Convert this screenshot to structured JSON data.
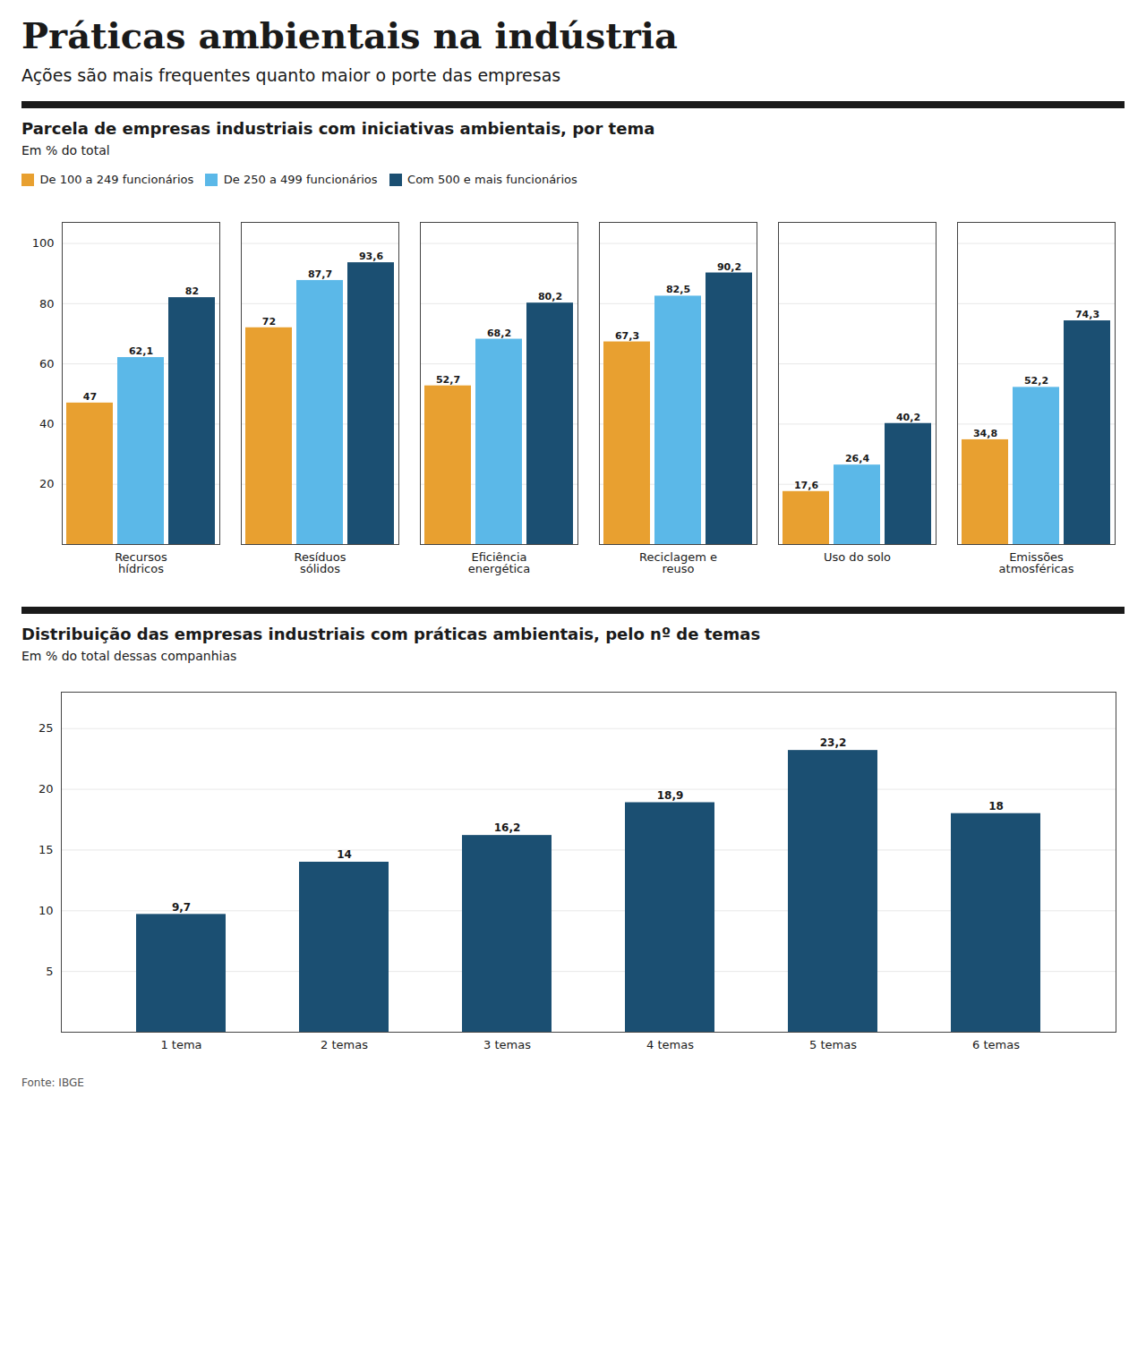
{
  "title": "Práticas ambientais na indústria",
  "subtitle": "Ações são mais frequentes quanto maior o porte das empresas",
  "annotations": [
    "Fonte: IBGE"
  ],
  "chart_data": [
    {
      "type": "bar",
      "title": "Parcela de empresas industriais com iniciativas ambientais, por tema",
      "subtitle": "Em % do total",
      "categories": [
        "Recursos\nhídricos",
        "Resíduos\nsólidos",
        "Eficiência\nenergética",
        "Reciclagem e\nreuso",
        "Uso do solo",
        "Emissões\natmosféricas"
      ],
      "series": [
        {
          "name": "De 100 a 249 funcionários",
          "color": "#E8A030",
          "values": [
            47,
            72,
            52.7,
            67.3,
            17.6,
            34.8
          ],
          "value_labels": [
            "47",
            "72",
            "52,7",
            "67,3",
            "17,6",
            "34,8"
          ]
        },
        {
          "name": "De 250 a 499 funcionários",
          "color": "#5BB8E8",
          "values": [
            62.1,
            87.7,
            68.2,
            82.5,
            26.4,
            52.2
          ],
          "value_labels": [
            "62,1",
            "87,7",
            "68,2",
            "82,5",
            "26,4",
            "52,2"
          ]
        },
        {
          "name": "Com 500 e mais funcionários",
          "color": "#1B4F72",
          "values": [
            82,
            93.6,
            80.2,
            90.2,
            40.2,
            74.3
          ],
          "value_labels": [
            "82",
            "93,6",
            "80,2",
            "90,2",
            "40,2",
            "74,3"
          ]
        }
      ],
      "ylim": [
        0,
        107
      ],
      "yticks": [
        20,
        40,
        60,
        80,
        100
      ],
      "grid": true,
      "legend": "top",
      "data_labels": true
    },
    {
      "type": "bar",
      "title": "Distribuição das empresas industriais com práticas ambientais, pelo nº de temas",
      "subtitle": "Em % do total dessas companhias",
      "categories": [
        "1 tema",
        "2 temas",
        "3 temas",
        "4 temas",
        "5 temas",
        "6 temas"
      ],
      "values": [
        9.7,
        14,
        16.2,
        18.9,
        23.2,
        18
      ],
      "value_labels": [
        "9,7",
        "14",
        "16,2",
        "18,9",
        "23,2",
        "18"
      ],
      "color": "#1B4F72",
      "ylim": [
        0,
        28
      ],
      "yticks": [
        5,
        10,
        15,
        20,
        25
      ],
      "grid": true,
      "data_labels": true
    }
  ]
}
